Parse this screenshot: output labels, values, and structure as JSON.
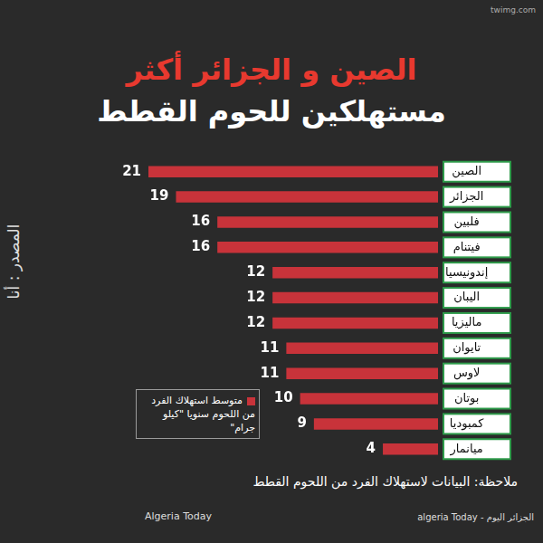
{
  "chart_data": {
    "type": "bar",
    "title": "الصين و الجزائر أكثر",
    "subtitle": "مستهلكين للحوم القطط",
    "orientation": "horizontal",
    "categories": [
      "الصين",
      "الجزائر",
      "فلبين",
      "فيتنام",
      "إندونيسيا",
      "اليبان",
      "ماليزيا",
      "تايوان",
      "لاوس",
      "بوتان",
      "كمبوديا",
      "ميانمار"
    ],
    "series": [
      {
        "name": "متوسط استهلاك الفرد من اللحوم سنويا \"كيلو جرام\"",
        "color": "#c8333a",
        "values": [
          21,
          19,
          16,
          16,
          12,
          12,
          12,
          11,
          11,
          10,
          9,
          4
        ]
      }
    ],
    "xlim": [
      0,
      21
    ],
    "data_labels": true,
    "grid": false,
    "tick_labels": "y",
    "legend": "lower left",
    "annotations": [
      "المصدر : أنا",
      "ملاحظة: البيانات لاستهلاك الفرد من اللحوم القطط",
      "Algeria Today",
      "الجزائر اليوم - algeria Today",
      "twimg.com"
    ]
  }
}
